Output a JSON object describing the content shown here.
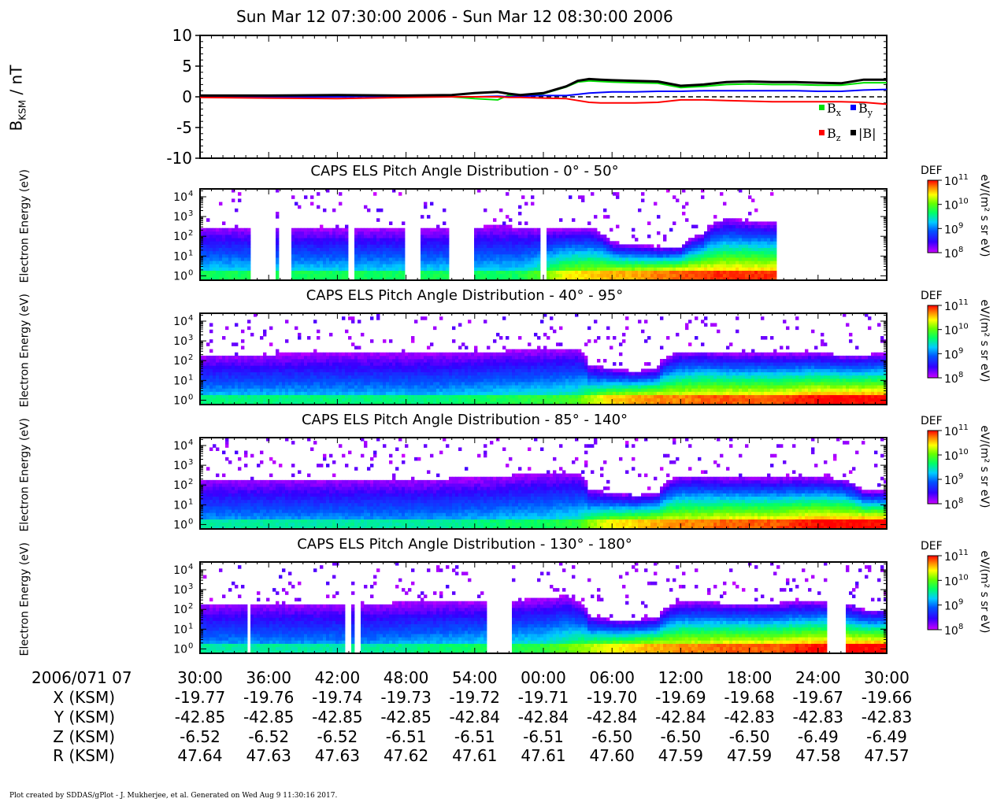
{
  "title": "Sun Mar 12 07:30:00 2006 - Sun Mar 12 08:30:00 2006",
  "footer": "Plot created by SDDAS/gPlot - J. Mukherjee, et al.  Generated on Wed Aug 9 11:30:16 2017.",
  "colors": {
    "bx": "#00e000",
    "by": "#0000ff",
    "bz": "#ff0000",
    "bmag": "#000000",
    "zero_line": "#000000"
  },
  "ephemeris": {
    "date_label": "2006/071 07",
    "rows": [
      {
        "label": "X (KSM)",
        "values": [
          "-19.77",
          "-19.76",
          "-19.74",
          "-19.73",
          "-19.72",
          "-19.71",
          "-19.70",
          "-19.69",
          "-19.68",
          "-19.67",
          "-19.66"
        ]
      },
      {
        "label": "Y (KSM)",
        "values": [
          "-42.85",
          "-42.85",
          "-42.85",
          "-42.85",
          "-42.84",
          "-42.84",
          "-42.84",
          "-42.84",
          "-42.83",
          "-42.83",
          "-42.83"
        ]
      },
      {
        "label": "Z (KSM)",
        "values": [
          "-6.52",
          "-6.52",
          "-6.52",
          "-6.51",
          "-6.51",
          "-6.51",
          "-6.50",
          "-6.50",
          "-6.50",
          "-6.49",
          "-6.49"
        ]
      },
      {
        "label": "R (KSM)",
        "values": [
          "47.64",
          "47.63",
          "47.63",
          "47.62",
          "47.61",
          "47.61",
          "47.60",
          "47.59",
          "47.59",
          "47.58",
          "47.57"
        ]
      }
    ]
  },
  "chart_data": [
    {
      "type": "line",
      "ylabel": "B",
      "ylabel_sub": "KSM",
      "ylabel_unit": " / nT",
      "ylim": [
        -10,
        10
      ],
      "yticks": [
        10,
        5,
        0,
        -5,
        -10
      ],
      "ytick_labels": [
        "10",
        "5",
        "0",
        "-5",
        "-10"
      ],
      "xlim": [
        0,
        60
      ],
      "x_unit": "minutes after 07:30:00",
      "x_ticks": [
        0,
        6,
        12,
        18,
        24,
        30,
        36,
        42,
        48,
        54,
        60
      ],
      "x_tick_labels": [
        "30:00",
        "36:00",
        "42:00",
        "48:00",
        "54:00",
        "00:00",
        "06:00",
        "12:00",
        "18:00",
        "24:00",
        "30:00"
      ],
      "reference_line": {
        "y": 0,
        "style": "dashed"
      },
      "legend": {
        "placement": "lower-right",
        "entries": [
          {
            "key": "bx",
            "base": "B",
            "sub": "x"
          },
          {
            "key": "by",
            "base": "B",
            "sub": "y"
          },
          {
            "key": "bz",
            "base": "B",
            "sub": "z"
          },
          {
            "key": "bmag",
            "base": "|B|",
            "sub": ""
          }
        ]
      },
      "series": [
        {
          "key": "bx",
          "x": [
            0,
            6,
            12,
            18,
            22,
            24,
            26,
            27,
            28,
            30,
            32,
            33,
            34,
            35,
            36,
            38,
            40,
            42,
            44,
            46,
            48,
            50,
            52,
            54,
            56,
            58,
            60
          ],
          "values": [
            0.1,
            0.1,
            0.2,
            0.1,
            0.0,
            -0.3,
            -0.5,
            0.3,
            0.0,
            0.5,
            1.6,
            2.4,
            2.6,
            2.5,
            2.4,
            2.3,
            2.2,
            1.5,
            1.7,
            2.0,
            2.1,
            2.0,
            2.0,
            1.9,
            1.9,
            2.3,
            2.3
          ]
        },
        {
          "key": "by",
          "x": [
            0,
            6,
            12,
            18,
            22,
            24,
            26,
            27,
            28,
            30,
            32,
            33,
            34,
            35,
            36,
            38,
            40,
            42,
            44,
            46,
            48,
            50,
            52,
            54,
            56,
            58,
            60
          ],
          "values": [
            0.0,
            0.0,
            0.0,
            0.1,
            0.0,
            0.0,
            0.1,
            0.0,
            0.1,
            0.2,
            0.2,
            0.4,
            0.6,
            0.7,
            0.8,
            0.8,
            0.9,
            0.9,
            1.0,
            1.0,
            1.0,
            1.0,
            1.0,
            0.9,
            0.9,
            1.1,
            1.2
          ]
        },
        {
          "key": "bz",
          "x": [
            0,
            6,
            12,
            18,
            22,
            24,
            26,
            27,
            28,
            30,
            32,
            33,
            34,
            35,
            36,
            38,
            40,
            42,
            44,
            46,
            48,
            50,
            52,
            54,
            56,
            58,
            60
          ],
          "values": [
            -0.1,
            -0.2,
            -0.3,
            -0.1,
            0.0,
            0.0,
            0.0,
            -0.1,
            -0.1,
            -0.2,
            -0.3,
            -0.6,
            -0.9,
            -1.0,
            -1.0,
            -1.0,
            -0.9,
            -0.5,
            -0.5,
            -0.6,
            -0.7,
            -0.8,
            -0.8,
            -0.8,
            -0.8,
            -0.9,
            -1.2
          ]
        },
        {
          "key": "bmag",
          "x": [
            0,
            6,
            12,
            18,
            22,
            24,
            26,
            27,
            28,
            30,
            32,
            33,
            34,
            35,
            36,
            38,
            40,
            42,
            44,
            46,
            48,
            50,
            52,
            54,
            56,
            58,
            60
          ],
          "values": [
            0.2,
            0.2,
            0.3,
            0.2,
            0.3,
            0.6,
            0.8,
            0.5,
            0.3,
            0.6,
            1.7,
            2.6,
            2.9,
            2.8,
            2.7,
            2.6,
            2.5,
            1.8,
            2.0,
            2.4,
            2.5,
            2.4,
            2.4,
            2.3,
            2.2,
            2.8,
            2.8
          ]
        }
      ]
    },
    {
      "type": "heatmap",
      "title": "CAPS ELS Pitch Angle Distribution - 0° - 50°",
      "ylabel": "Electron Energy (eV)",
      "y_scale": "log",
      "ylim": [
        0.6,
        25000
      ],
      "yticks": [
        1,
        10,
        100,
        1000,
        10000
      ],
      "colorbar": {
        "label": "DEF",
        "unit": "eV/(m² s sr eV)",
        "range": [
          100000000.0,
          100000000000.0
        ],
        "scale": "log",
        "ticks": [
          8,
          9,
          10,
          11
        ]
      },
      "xlim": [
        0,
        60
      ],
      "profile": {
        "x": [
          0,
          5,
          10,
          15,
          20,
          24,
          26,
          28,
          30,
          32,
          34,
          36,
          38,
          40,
          42,
          44,
          46,
          48,
          50,
          52,
          54,
          56,
          60
        ],
        "upper_energy": [
          300,
          300,
          250,
          250,
          250,
          300,
          350,
          300,
          250,
          250,
          250,
          50,
          40,
          30,
          30,
          150,
          800,
          600,
          500,
          400,
          300,
          0,
          0
        ],
        "low_band_intensity": [
          9.5,
          9.5,
          9.5,
          9.5,
          9.5,
          9.5,
          9.5,
          9.5,
          9.8,
          10.2,
          10.3,
          10.4,
          10.4,
          10.5,
          10.6,
          10.7,
          10.7,
          10.7,
          10.7,
          10.8,
          10.7,
          0,
          0
        ]
      },
      "data_gaps_minutes": [
        [
          4.4,
          6.5
        ],
        [
          6.8,
          8.0
        ],
        [
          12.8,
          13.5
        ],
        [
          18.0,
          19.4
        ],
        [
          21.7,
          24.0
        ],
        [
          28.0,
          28.2
        ],
        [
          29.7,
          30.2
        ],
        [
          50.5,
          60.0
        ]
      ]
    },
    {
      "type": "heatmap",
      "title": "CAPS ELS Pitch Angle Distribution - 40° - 95°",
      "ylabel": "Electron Energy (eV)",
      "y_scale": "log",
      "ylim": [
        0.6,
        25000
      ],
      "yticks": [
        1,
        10,
        100,
        1000,
        10000
      ],
      "colorbar": {
        "label": "DEF",
        "unit": "eV/(m² s sr eV)",
        "range": [
          100000000.0,
          100000000000.0
        ],
        "scale": "log",
        "ticks": [
          8,
          9,
          10,
          11
        ]
      },
      "xlim": [
        0,
        60
      ],
      "profile": {
        "x": [
          0,
          5,
          10,
          15,
          20,
          25,
          30,
          33,
          34,
          36,
          38,
          40,
          42,
          44,
          46,
          48,
          50,
          52,
          54,
          56,
          58,
          60
        ],
        "upper_energy": [
          200,
          200,
          250,
          250,
          250,
          300,
          350,
          400,
          60,
          40,
          30,
          40,
          300,
          300,
          250,
          250,
          250,
          250,
          250,
          200,
          200,
          250
        ],
        "low_band_intensity": [
          9.4,
          9.4,
          9.4,
          9.4,
          9.4,
          9.5,
          9.6,
          9.7,
          10.0,
          10.3,
          10.4,
          10.5,
          10.5,
          10.6,
          10.6,
          10.6,
          10.6,
          10.7,
          10.8,
          10.8,
          10.8,
          10.8
        ]
      },
      "data_gaps_minutes": []
    },
    {
      "type": "heatmap",
      "title": "CAPS ELS Pitch Angle Distribution - 85° - 140°",
      "ylabel": "Electron Energy (eV)",
      "y_scale": "log",
      "ylim": [
        0.6,
        25000
      ],
      "yticks": [
        1,
        10,
        100,
        1000,
        10000
      ],
      "colorbar": {
        "label": "DEF",
        "unit": "eV/(m² s sr eV)",
        "range": [
          100000000.0,
          100000000000.0
        ],
        "scale": "log",
        "ticks": [
          8,
          9,
          10,
          11
        ]
      },
      "xlim": [
        0,
        60
      ],
      "profile": {
        "x": [
          0,
          5,
          10,
          15,
          20,
          25,
          30,
          33,
          34,
          36,
          38,
          40,
          42,
          44,
          46,
          48,
          50,
          52,
          54,
          56,
          58,
          60
        ],
        "upper_energy": [
          200,
          200,
          200,
          200,
          200,
          250,
          400,
          450,
          60,
          40,
          30,
          40,
          300,
          300,
          250,
          250,
          250,
          250,
          250,
          200,
          50,
          50
        ],
        "low_band_intensity": [
          9.3,
          9.3,
          9.3,
          9.3,
          9.3,
          9.4,
          9.5,
          9.6,
          9.9,
          10.2,
          10.3,
          10.4,
          10.5,
          10.5,
          10.6,
          10.6,
          10.6,
          10.7,
          10.8,
          10.8,
          10.8,
          10.8
        ]
      },
      "data_gaps_minutes": []
    },
    {
      "type": "heatmap",
      "title": "CAPS ELS Pitch Angle Distribution - 130° - 180°",
      "ylabel": "Electron Energy (eV)",
      "y_scale": "log",
      "ylim": [
        0.6,
        25000
      ],
      "yticks": [
        1,
        10,
        100,
        1000,
        10000
      ],
      "colorbar": {
        "label": "DEF",
        "unit": "eV/(m² s sr eV)",
        "range": [
          100000000.0,
          100000000000.0
        ],
        "scale": "log",
        "ticks": [
          8,
          9,
          10,
          11
        ]
      },
      "xlim": [
        0,
        60
      ],
      "profile": {
        "x": [
          0,
          5,
          10,
          15,
          20,
          25,
          30,
          32,
          34,
          36,
          38,
          40,
          42,
          44,
          46,
          48,
          50,
          52,
          54,
          56,
          58,
          60
        ],
        "upper_energy": [
          200,
          200,
          200,
          200,
          250,
          250,
          350,
          500,
          50,
          30,
          30,
          40,
          250,
          250,
          200,
          200,
          200,
          250,
          250,
          200,
          100,
          100
        ],
        "low_band_intensity": [
          9.3,
          9.3,
          9.3,
          9.3,
          9.4,
          9.5,
          9.6,
          9.8,
          10.0,
          10.2,
          10.3,
          10.4,
          10.5,
          10.5,
          10.6,
          10.6,
          10.6,
          10.7,
          10.8,
          10.8,
          10.8,
          10.8
        ]
      },
      "data_gaps_minutes": [
        [
          4.0,
          4.4
        ],
        [
          12.7,
          13.1
        ],
        [
          13.6,
          13.9
        ],
        [
          25.1,
          27.2
        ],
        [
          54.7,
          56.5
        ]
      ]
    }
  ]
}
